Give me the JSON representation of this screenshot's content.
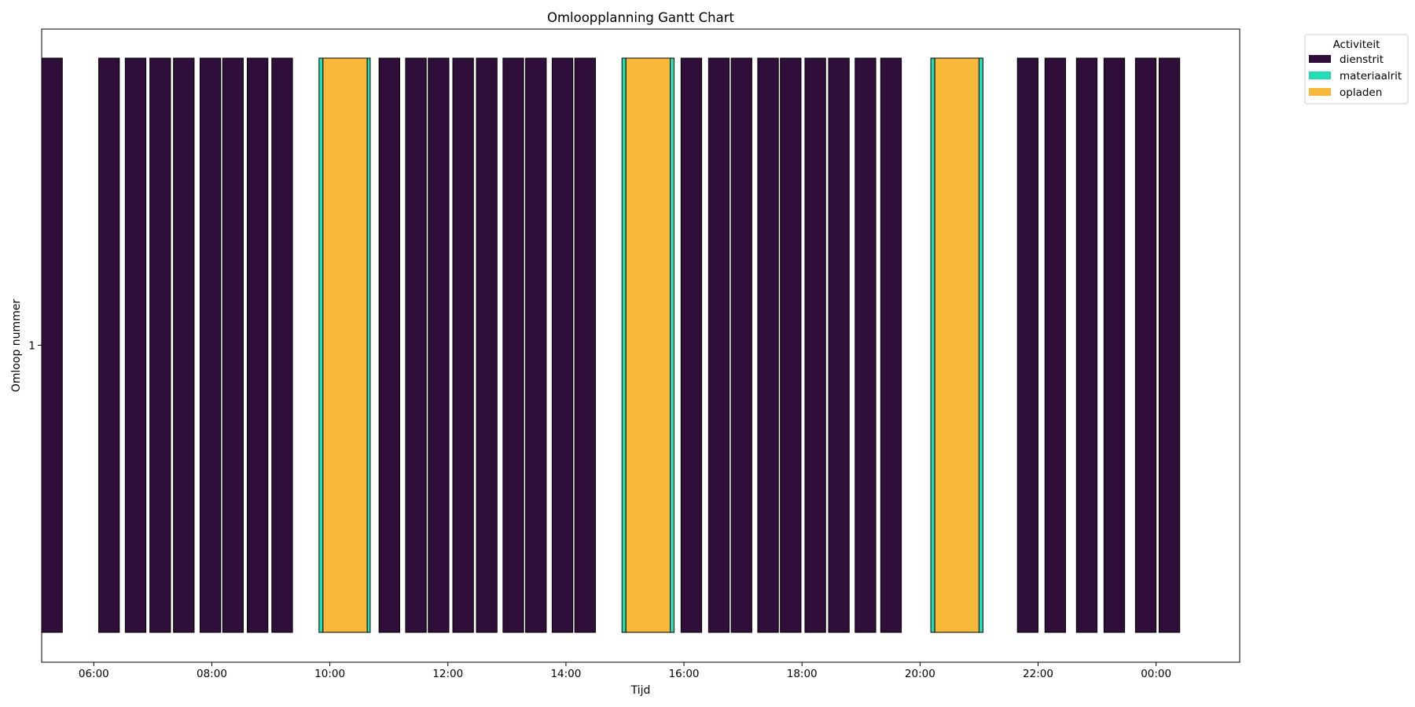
{
  "chart_data": {
    "type": "gantt",
    "title": "Omloopplanning Gantt Chart",
    "xlabel": "Tijd",
    "ylabel": "Omloop nummer",
    "y_categories": [
      "1"
    ],
    "x_range": [
      "05:07",
      "25:25"
    ],
    "x_ticks": [
      "06:00",
      "08:00",
      "10:00",
      "12:00",
      "14:00",
      "16:00",
      "18:00",
      "20:00",
      "22:00",
      "00:00"
    ],
    "grid": false,
    "legend": {
      "title": "Activiteit",
      "placement": "outside upper right",
      "entries": [
        {
          "label": "dienstrit",
          "color": "#2f0f3a"
        },
        {
          "label": "materiaalrit",
          "color": "#25dcb4"
        },
        {
          "label": "opladen",
          "color": "#f8b93b"
        }
      ]
    },
    "tasks": [
      {
        "omloop": "1",
        "activiteit": "dienstrit",
        "start": "05:07",
        "end": "05:28"
      },
      {
        "omloop": "1",
        "activiteit": "dienstrit",
        "start": "06:05",
        "end": "06:26"
      },
      {
        "omloop": "1",
        "activiteit": "dienstrit",
        "start": "06:32",
        "end": "06:53"
      },
      {
        "omloop": "1",
        "activiteit": "dienstrit",
        "start": "06:57",
        "end": "07:18"
      },
      {
        "omloop": "1",
        "activiteit": "dienstrit",
        "start": "07:21",
        "end": "07:42"
      },
      {
        "omloop": "1",
        "activiteit": "dienstrit",
        "start": "07:48",
        "end": "08:09"
      },
      {
        "omloop": "1",
        "activiteit": "dienstrit",
        "start": "08:11",
        "end": "08:32"
      },
      {
        "omloop": "1",
        "activiteit": "dienstrit",
        "start": "08:36",
        "end": "08:57"
      },
      {
        "omloop": "1",
        "activiteit": "dienstrit",
        "start": "09:01",
        "end": "09:22"
      },
      {
        "omloop": "1",
        "activiteit": "materiaalrit",
        "start": "09:49",
        "end": "09:53"
      },
      {
        "omloop": "1",
        "activiteit": "opladen",
        "start": "09:53",
        "end": "10:38"
      },
      {
        "omloop": "1",
        "activiteit": "materiaalrit",
        "start": "10:38",
        "end": "10:41"
      },
      {
        "omloop": "1",
        "activiteit": "dienstrit",
        "start": "10:50",
        "end": "11:11"
      },
      {
        "omloop": "1",
        "activiteit": "dienstrit",
        "start": "11:17",
        "end": "11:38"
      },
      {
        "omloop": "1",
        "activiteit": "dienstrit",
        "start": "11:40",
        "end": "12:01"
      },
      {
        "omloop": "1",
        "activiteit": "dienstrit",
        "start": "12:05",
        "end": "12:26"
      },
      {
        "omloop": "1",
        "activiteit": "dienstrit",
        "start": "12:29",
        "end": "12:50"
      },
      {
        "omloop": "1",
        "activiteit": "dienstrit",
        "start": "12:56",
        "end": "13:17"
      },
      {
        "omloop": "1",
        "activiteit": "dienstrit",
        "start": "13:19",
        "end": "13:40"
      },
      {
        "omloop": "1",
        "activiteit": "dienstrit",
        "start": "13:46",
        "end": "14:07"
      },
      {
        "omloop": "1",
        "activiteit": "dienstrit",
        "start": "14:09",
        "end": "14:30"
      },
      {
        "omloop": "1",
        "activiteit": "materiaalrit",
        "start": "14:57",
        "end": "15:01"
      },
      {
        "omloop": "1",
        "activiteit": "opladen",
        "start": "15:01",
        "end": "15:46"
      },
      {
        "omloop": "1",
        "activiteit": "materiaalrit",
        "start": "15:46",
        "end": "15:50"
      },
      {
        "omloop": "1",
        "activiteit": "dienstrit",
        "start": "15:57",
        "end": "16:18"
      },
      {
        "omloop": "1",
        "activiteit": "dienstrit",
        "start": "16:25",
        "end": "16:46"
      },
      {
        "omloop": "1",
        "activiteit": "dienstrit",
        "start": "16:48",
        "end": "17:09"
      },
      {
        "omloop": "1",
        "activiteit": "dienstrit",
        "start": "17:15",
        "end": "17:36"
      },
      {
        "omloop": "1",
        "activiteit": "dienstrit",
        "start": "17:38",
        "end": "17:59"
      },
      {
        "omloop": "1",
        "activiteit": "dienstrit",
        "start": "18:03",
        "end": "18:24"
      },
      {
        "omloop": "1",
        "activiteit": "dienstrit",
        "start": "18:27",
        "end": "18:48"
      },
      {
        "omloop": "1",
        "activiteit": "dienstrit",
        "start": "18:54",
        "end": "19:15"
      },
      {
        "omloop": "1",
        "activiteit": "dienstrit",
        "start": "19:20",
        "end": "19:41"
      },
      {
        "omloop": "1",
        "activiteit": "materiaalrit",
        "start": "20:11",
        "end": "20:15"
      },
      {
        "omloop": "1",
        "activiteit": "opladen",
        "start": "20:15",
        "end": "21:00"
      },
      {
        "omloop": "1",
        "activiteit": "materiaalrit",
        "start": "21:00",
        "end": "21:04"
      },
      {
        "omloop": "1",
        "activiteit": "dienstrit",
        "start": "21:39",
        "end": "22:00"
      },
      {
        "omloop": "1",
        "activiteit": "dienstrit",
        "start": "22:07",
        "end": "22:28"
      },
      {
        "omloop": "1",
        "activiteit": "dienstrit",
        "start": "22:39",
        "end": "23:00"
      },
      {
        "omloop": "1",
        "activiteit": "dienstrit",
        "start": "23:07",
        "end": "23:28"
      },
      {
        "omloop": "1",
        "activiteit": "dienstrit",
        "start": "23:39",
        "end": "00:00"
      },
      {
        "omloop": "1",
        "activiteit": "dienstrit",
        "start": "00:03",
        "end": "00:24"
      }
    ]
  }
}
